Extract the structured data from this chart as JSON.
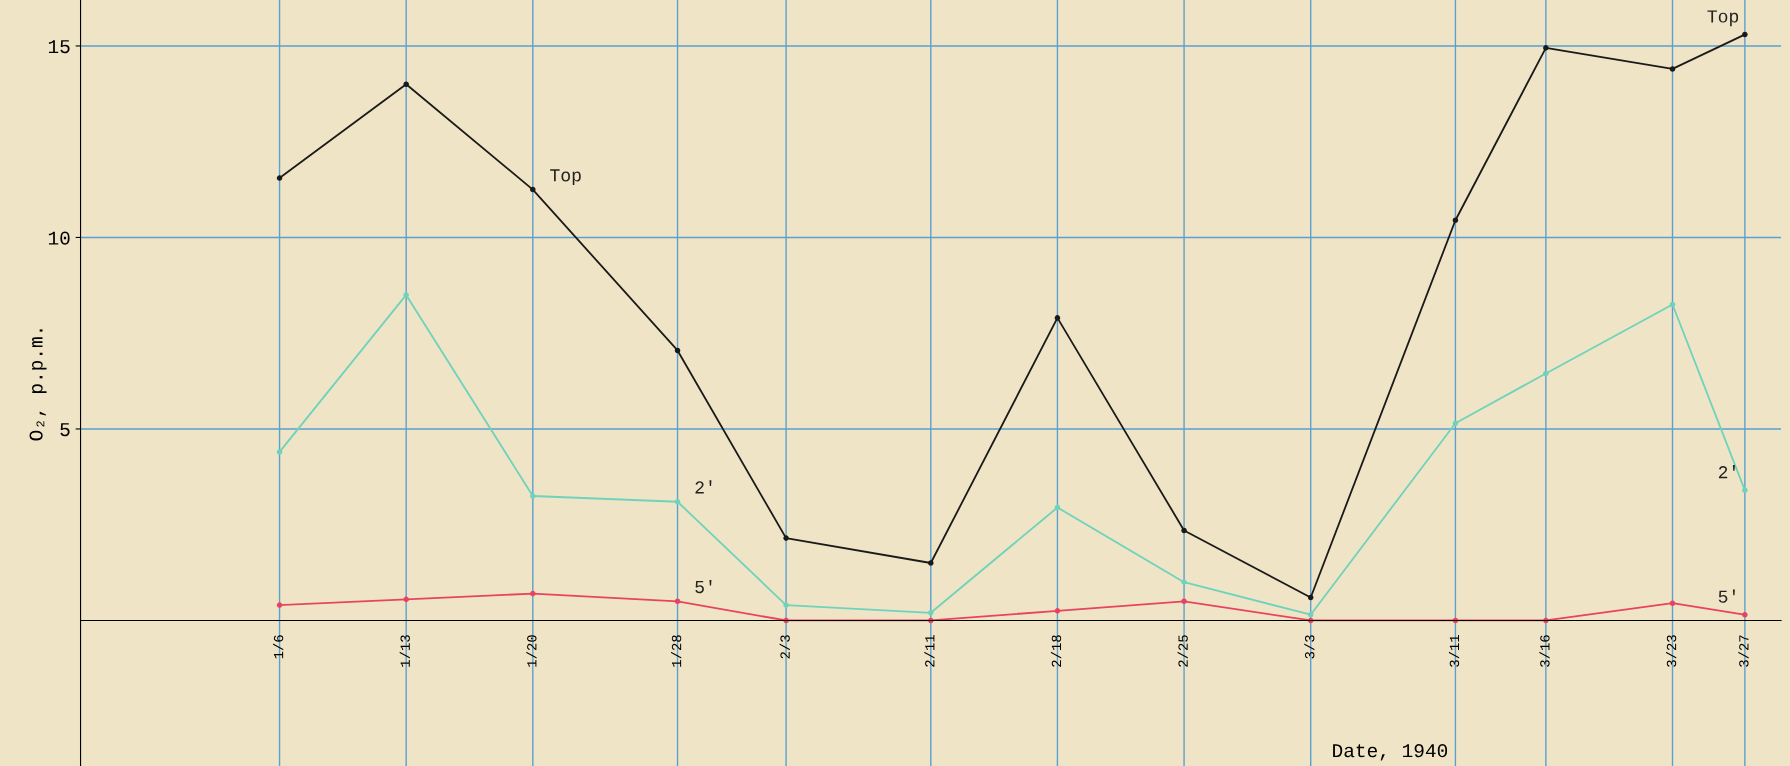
{
  "chart_data": {
    "type": "line",
    "xlabel": "Date, 1940",
    "ylabel": "O₂, p.p.m.",
    "x": [
      "1940-01-06",
      "1940-01-13",
      "1940-01-20",
      "1940-01-28",
      "1940-02-03",
      "1940-02-11",
      "1940-02-18",
      "1940-02-25",
      "1940-03-03",
      "1940-03-11",
      "1940-03-16",
      "1940-03-23",
      "1940-03-27"
    ],
    "series": [
      {
        "name": "Top",
        "color": "#1a1a1a",
        "values": [
          11.55,
          14.0,
          11.25,
          7.05,
          2.15,
          1.5,
          7.9,
          2.35,
          0.6,
          10.45,
          14.95,
          14.4,
          15.3
        ]
      },
      {
        "name": "2'",
        "color": "#6fd3bb",
        "values": [
          4.4,
          8.5,
          3.25,
          3.1,
          0.4,
          0.2,
          2.95,
          1.0,
          0.15,
          5.15,
          6.45,
          8.25,
          3.4
        ]
      },
      {
        "name": "5'",
        "color": "#e8435f",
        "values": [
          0.4,
          0.55,
          0.7,
          0.5,
          0.0,
          0.0,
          0.25,
          0.5,
          0.0,
          0.0,
          0.0,
          0.45,
          0.15
        ]
      }
    ],
    "annotations": [
      {
        "text": "Top",
        "x": "1940-01-20",
        "y": 11.25
      },
      {
        "text": "2'",
        "x": "1940-01-28",
        "y": 3.1
      },
      {
        "text": "5'",
        "x": "1940-01-28",
        "y": 0.5
      }
    ],
    "xlim": [
      "1939-12-26",
      "1940-03-29"
    ],
    "xticks": [
      {
        "value": "1940-01-06",
        "label": "1/6"
      },
      {
        "value": "1940-01-13",
        "label": "1/13"
      },
      {
        "value": "1940-01-20",
        "label": "1/20"
      },
      {
        "value": "1940-01-28",
        "label": "1/28"
      },
      {
        "value": "1940-02-03",
        "label": "2/3"
      },
      {
        "value": "1940-02-11",
        "label": "2/11"
      },
      {
        "value": "1940-02-18",
        "label": "2/18"
      },
      {
        "value": "1940-02-25",
        "label": "2/25"
      },
      {
        "value": "1940-03-03",
        "label": "3/3"
      },
      {
        "value": "1940-03-11",
        "label": "3/11"
      },
      {
        "value": "1940-03-16",
        "label": "3/16"
      },
      {
        "value": "1940-03-23",
        "label": "3/23"
      },
      {
        "value": "1940-03-27",
        "label": "3/27"
      }
    ],
    "ylim": [
      -3.8,
      16.2
    ],
    "yticks": [
      5,
      10,
      15
    ],
    "grid": true,
    "marker": "circle",
    "line_style": "solid",
    "legend": false
  }
}
